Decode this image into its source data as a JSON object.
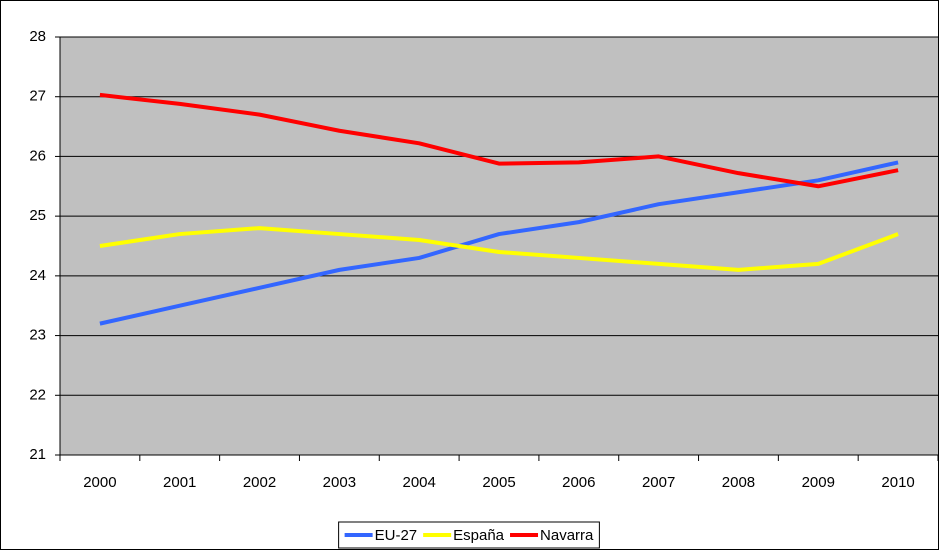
{
  "chart_data": {
    "type": "line",
    "categories": [
      "2000",
      "2001",
      "2002",
      "2003",
      "2004",
      "2005",
      "2006",
      "2007",
      "2008",
      "2009",
      "2010"
    ],
    "series": [
      {
        "name": "EU-27",
        "color": "#3366ff",
        "values": [
          23.2,
          23.5,
          23.8,
          24.1,
          24.3,
          24.7,
          24.9,
          25.2,
          25.4,
          25.6,
          25.9
        ]
      },
      {
        "name": "España",
        "color": "#ffff00",
        "values": [
          24.5,
          24.7,
          24.8,
          24.7,
          24.6,
          24.4,
          24.3,
          24.2,
          24.1,
          24.2,
          24.7
        ]
      },
      {
        "name": "Navarra",
        "color": "#ff0000",
        "values": [
          27.03,
          26.88,
          26.7,
          26.43,
          26.22,
          25.88,
          25.9,
          26.0,
          25.72,
          25.5,
          25.77
        ]
      }
    ],
    "ylim": [
      21,
      28
    ],
    "yticks": [
      21,
      22,
      23,
      24,
      25,
      26,
      27,
      28
    ],
    "grid": true,
    "background": "#c0c0c0",
    "legend": "bottom"
  }
}
